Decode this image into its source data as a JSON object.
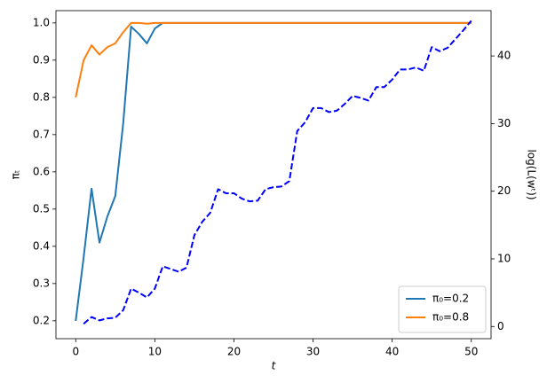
{
  "chart_data": {
    "type": "line",
    "xlabel": "t",
    "ylabel": "πₜ",
    "y2label": "log(L(wᵗ))",
    "x": [
      0,
      1,
      2,
      3,
      4,
      5,
      6,
      7,
      8,
      9,
      10,
      11,
      12,
      13,
      14,
      15,
      16,
      17,
      18,
      19,
      20,
      21,
      22,
      23,
      24,
      25,
      26,
      27,
      28,
      29,
      30,
      31,
      32,
      33,
      34,
      35,
      36,
      37,
      38,
      39,
      40,
      41,
      42,
      43,
      44,
      45,
      46,
      47,
      48,
      49,
      50
    ],
    "xlim": [
      -2.5,
      52.5
    ],
    "xticks": [
      0,
      10,
      20,
      30,
      40,
      50
    ],
    "ylim": [
      0.152,
      1.033
    ],
    "yticks": [
      0.2,
      0.3,
      0.4,
      0.5,
      0.6,
      0.7,
      0.8,
      0.9,
      {
        "value": 1,
        "label": "1.0"
      }
    ],
    "y2lim": [
      -1.8,
      46.7
    ],
    "y2ticks": [
      0,
      10,
      20,
      30,
      40
    ],
    "legend": "lower right",
    "series": [
      {
        "name": "π₀=0.2",
        "color": "#1f77b4",
        "values": [
          0.2,
          0.37,
          0.555,
          0.41,
          0.48,
          0.535,
          0.73,
          0.99,
          0.97,
          0.945,
          0.985,
          1,
          1,
          1,
          1,
          1,
          1,
          1,
          1,
          1,
          1,
          1,
          1,
          1,
          1,
          1,
          1,
          1,
          1,
          1,
          1,
          1,
          1,
          1,
          1,
          1,
          1,
          1,
          1,
          1,
          1,
          1,
          1,
          1,
          1,
          1,
          1,
          1,
          1,
          1,
          1
        ]
      },
      {
        "name": "π₀=0.8",
        "color": "#ff7f0e",
        "values": [
          0.8,
          0.9,
          0.94,
          0.915,
          0.935,
          0.945,
          0.975,
          1,
          1,
          0.998,
          1,
          1,
          1,
          1,
          1,
          1,
          1,
          1,
          1,
          1,
          1,
          1,
          1,
          1,
          1,
          1,
          1,
          1,
          1,
          1,
          1,
          1,
          1,
          1,
          1,
          1,
          1,
          1,
          1,
          1,
          1,
          1,
          1,
          1,
          1,
          1,
          1,
          1,
          1,
          1,
          1
        ]
      },
      {
        "color": "#0000ff",
        "axis": "y2",
        "dashed": true,
        "values": [
          null,
          0.4,
          1.4,
          0.9,
          1.2,
          1.3,
          2.4,
          5.6,
          5.0,
          4.3,
          5.6,
          8.9,
          8.5,
          8.1,
          8.7,
          13.5,
          15.5,
          16.8,
          20.3,
          19.7,
          19.7,
          18.9,
          18.5,
          18.6,
          20.3,
          20.6,
          20.7,
          21.5,
          28.9,
          30.2,
          32.3,
          32.3,
          31.7,
          31.9,
          32.9,
          34.1,
          33.8,
          33.4,
          35.4,
          35.4,
          36.5,
          38.0,
          38.0,
          38.3,
          37.8,
          41.3,
          40.7,
          41.2,
          42.5,
          43.8,
          45.2
        ]
      }
    ]
  }
}
